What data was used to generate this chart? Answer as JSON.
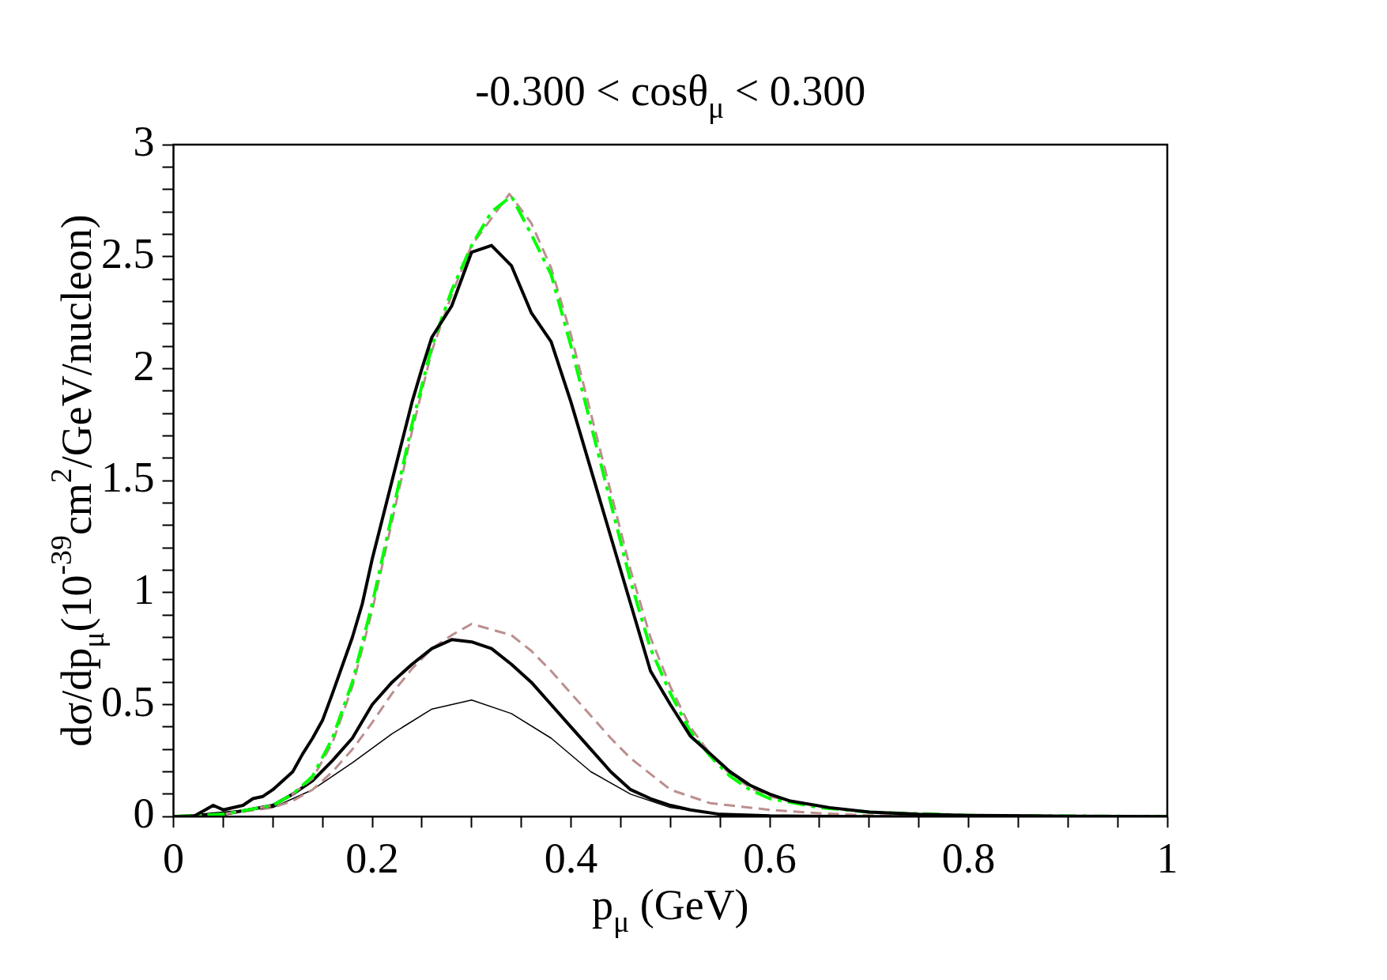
{
  "chart_data": {
    "type": "line",
    "title": "-0.300 < cosθ$_{μ}$ < 0.300",
    "xlabel": "p$_{μ}$ (GeV)",
    "ylabel": "dσ/dp$_{μ}$(10$^{-39}$cm$^{2}$/GeV/nucleon)",
    "xlim": [
      0,
      1
    ],
    "ylim": [
      0,
      3
    ],
    "xticks": [
      0,
      {
        "value": 0.05,
        "label": null
      },
      {
        "value": 0.1,
        "label": null
      },
      {
        "value": 0.15,
        "label": null
      },
      0.2,
      {
        "value": 0.25,
        "label": null
      },
      {
        "value": 0.3,
        "label": null
      },
      {
        "value": 0.35,
        "label": null
      },
      0.4,
      {
        "value": 0.45,
        "label": null
      },
      {
        "value": 0.5,
        "label": null
      },
      {
        "value": 0.55,
        "label": null
      },
      0.6,
      {
        "value": 0.65,
        "label": null
      },
      {
        "value": 0.7,
        "label": null
      },
      {
        "value": 0.75,
        "label": null
      },
      0.8,
      {
        "value": 0.85,
        "label": null
      },
      {
        "value": 0.9,
        "label": null
      },
      {
        "value": 0.95,
        "label": null
      },
      1
    ],
    "yticks": [
      0,
      {
        "value": 0.1,
        "label": null
      },
      {
        "value": 0.2,
        "label": null
      },
      {
        "value": 0.3,
        "label": null
      },
      {
        "value": 0.4,
        "label": null
      },
      0.5,
      {
        "value": 0.6,
        "label": null
      },
      {
        "value": 0.7,
        "label": null
      },
      {
        "value": 0.8,
        "label": null
      },
      {
        "value": 0.9,
        "label": null
      },
      1,
      {
        "value": 1.1,
        "label": null
      },
      {
        "value": 1.2,
        "label": null
      },
      {
        "value": 1.3,
        "label": null
      },
      {
        "value": 1.4,
        "label": null
      },
      1.5,
      {
        "value": 1.6,
        "label": null
      },
      {
        "value": 1.7,
        "label": null
      },
      {
        "value": 1.8,
        "label": null
      },
      {
        "value": 1.9,
        "label": null
      },
      2,
      {
        "value": 2.1,
        "label": null
      },
      {
        "value": 2.2,
        "label": null
      },
      {
        "value": 2.3,
        "label": null
      },
      {
        "value": 2.4,
        "label": null
      },
      2.5,
      {
        "value": 2.6,
        "label": null
      },
      {
        "value": 2.7,
        "label": null
      },
      {
        "value": 2.8,
        "label": null
      },
      {
        "value": 2.9,
        "label": null
      },
      3
    ],
    "legend": false,
    "marker": "none",
    "series": [
      {
        "color": "#000000",
        "line_style": "solid",
        "x": [
          0,
          0.02,
          0.04,
          0.05,
          0.07,
          0.08,
          0.09,
          0.1,
          0.12,
          0.13,
          0.14,
          0.15,
          0.16,
          0.18,
          0.19,
          0.2,
          0.22,
          0.24,
          0.25,
          0.26,
          0.28,
          0.3,
          0.32,
          0.34,
          0.36,
          0.38,
          0.4,
          0.42,
          0.44,
          0.46,
          0.48,
          0.5,
          0.52,
          0.54,
          0.56,
          0.58,
          0.6,
          0.62,
          0.66,
          0.7,
          0.75,
          0.8,
          0.9,
          1
        ],
        "values": [
          0,
          0,
          0.05,
          0.03,
          0.05,
          0.08,
          0.09,
          0.12,
          0.2,
          0.28,
          0.35,
          0.43,
          0.55,
          0.8,
          0.95,
          1.15,
          1.5,
          1.85,
          2,
          2.14,
          2.28,
          2.52,
          2.55,
          2.46,
          2.25,
          2.12,
          1.85,
          1.55,
          1.25,
          0.95,
          0.65,
          0.5,
          0.36,
          0.28,
          0.2,
          0.14,
          0.1,
          0.07,
          0.04,
          0.02,
          0.01,
          0.005,
          0.002,
          0
        ]
      },
      {
        "color": "#00ff00",
        "line_style": "dashdot",
        "x": [
          0,
          0.05,
          0.1,
          0.12,
          0.14,
          0.16,
          0.18,
          0.2,
          0.22,
          0.24,
          0.26,
          0.28,
          0.3,
          0.32,
          0.34,
          0.36,
          0.38,
          0.4,
          0.42,
          0.44,
          0.46,
          0.48,
          0.5,
          0.52,
          0.54,
          0.56,
          0.58,
          0.6,
          0.65,
          0.7,
          0.8,
          1
        ],
        "values": [
          0,
          0.01,
          0.05,
          0.1,
          0.18,
          0.35,
          0.6,
          0.95,
          1.35,
          1.75,
          2.1,
          2.35,
          2.55,
          2.7,
          2.77,
          2.6,
          2.42,
          2.1,
          1.75,
          1.4,
          1.05,
          0.75,
          0.55,
          0.38,
          0.27,
          0.18,
          0.12,
          0.08,
          0.04,
          0.02,
          0.005,
          0
        ]
      },
      {
        "color": "#bc8f8f",
        "line_style": "dashed",
        "x": [
          0,
          0.05,
          0.1,
          0.12,
          0.14,
          0.16,
          0.18,
          0.2,
          0.22,
          0.24,
          0.26,
          0.28,
          0.3,
          0.338,
          0.36,
          0.38,
          0.4,
          0.42,
          0.44,
          0.46,
          0.48,
          0.5,
          0.52,
          0.54,
          0.56,
          0.58,
          0.6,
          0.65,
          0.7,
          0.8,
          1
        ],
        "values": [
          0,
          0.01,
          0.05,
          0.1,
          0.17,
          0.33,
          0.58,
          0.92,
          1.32,
          1.72,
          2.08,
          2.33,
          2.55,
          2.78,
          2.65,
          2.45,
          2.15,
          1.8,
          1.45,
          1.1,
          0.8,
          0.58,
          0.4,
          0.28,
          0.19,
          0.13,
          0.09,
          0.045,
          0.02,
          0.005,
          0
        ]
      },
      {
        "color": "#000000",
        "line_style": "solid",
        "x": [
          0,
          0.05,
          0.1,
          0.12,
          0.14,
          0.16,
          0.18,
          0.2,
          0.22,
          0.24,
          0.26,
          0.28,
          0.3,
          0.32,
          0.34,
          0.36,
          0.38,
          0.4,
          0.42,
          0.44,
          0.46,
          0.48,
          0.5,
          0.52,
          0.55,
          0.6,
          0.7,
          1
        ],
        "values": [
          0,
          0.01,
          0.05,
          0.1,
          0.16,
          0.25,
          0.35,
          0.5,
          0.6,
          0.68,
          0.75,
          0.79,
          0.78,
          0.75,
          0.68,
          0.6,
          0.5,
          0.4,
          0.3,
          0.2,
          0.12,
          0.08,
          0.05,
          0.03,
          0.01,
          0.003,
          0,
          0
        ]
      },
      {
        "color": "#bc8f8f",
        "line_style": "dashed",
        "x": [
          0,
          0.05,
          0.1,
          0.12,
          0.14,
          0.16,
          0.18,
          0.2,
          0.22,
          0.24,
          0.26,
          0.28,
          0.3,
          0.34,
          0.36,
          0.38,
          0.4,
          0.42,
          0.44,
          0.46,
          0.48,
          0.5,
          0.52,
          0.54,
          0.56,
          0.6,
          0.65,
          0.7,
          0.8,
          1
        ],
        "values": [
          0,
          0.01,
          0.04,
          0.07,
          0.12,
          0.2,
          0.3,
          0.42,
          0.55,
          0.66,
          0.75,
          0.81,
          0.86,
          0.81,
          0.74,
          0.65,
          0.55,
          0.45,
          0.35,
          0.26,
          0.19,
          0.12,
          0.09,
          0.06,
          0.05,
          0.03,
          0.015,
          0.005,
          0,
          0
        ]
      },
      {
        "color": "#000000",
        "line_style": "solid",
        "x": [
          0,
          0.1,
          0.14,
          0.18,
          0.22,
          0.26,
          0.3,
          0.34,
          0.38,
          0.42,
          0.46,
          0.5,
          0.55,
          0.6,
          1
        ],
        "values": [
          0,
          0.04,
          0.12,
          0.24,
          0.37,
          0.48,
          0.52,
          0.46,
          0.35,
          0.2,
          0.1,
          0.04,
          0.01,
          0,
          0
        ]
      }
    ]
  }
}
